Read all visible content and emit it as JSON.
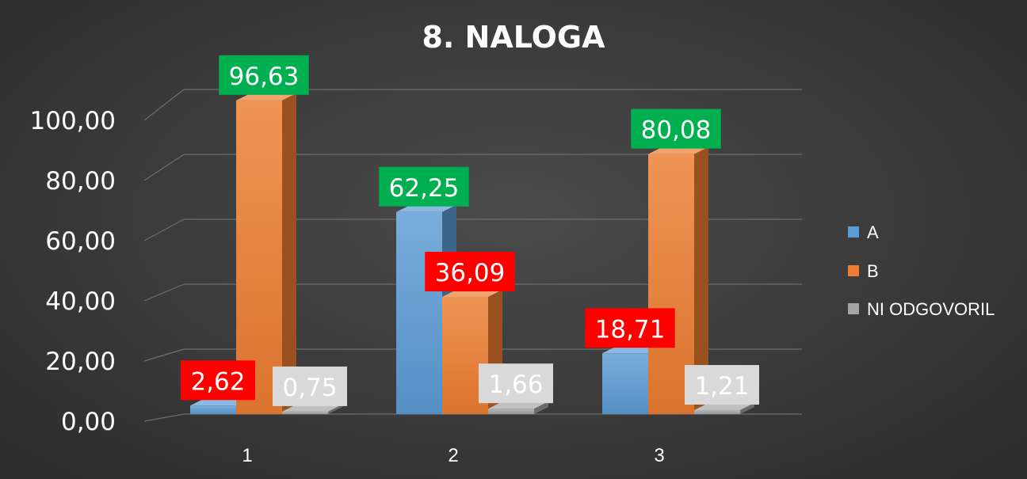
{
  "chart_data": {
    "type": "bar",
    "title": "8. NALOGA",
    "categories": [
      "1",
      "2",
      "3"
    ],
    "series": [
      {
        "name": "A",
        "values": [
          2.62,
          62.25,
          18.71
        ],
        "labels": [
          "2,62",
          "62,25",
          "18,71"
        ],
        "label_colors": [
          "#ff0000",
          "#00b050",
          "#ff0000"
        ],
        "color": "#5b9bd5"
      },
      {
        "name": "B",
        "values": [
          96.63,
          36.09,
          80.08
        ],
        "labels": [
          "96,63",
          "36,09",
          "80,08"
        ],
        "label_colors": [
          "#00b050",
          "#ff0000",
          "#00b050"
        ],
        "color": "#ed7d31"
      },
      {
        "name": "NI ODGOVORIL",
        "values": [
          0.75,
          1.66,
          1.21
        ],
        "labels": [
          "0,75",
          "1,66",
          "1,21"
        ],
        "label_colors": [
          "#d9d9d9",
          "#d9d9d9",
          "#d9d9d9"
        ],
        "color": "#a5a5a5"
      }
    ],
    "y_ticks": [
      "0,00",
      "20,00",
      "40,00",
      "60,00",
      "80,00",
      "100,00"
    ],
    "ylim": [
      0,
      100
    ],
    "legend_position": "right",
    "grid": true,
    "style": "3d-clustered-column"
  }
}
